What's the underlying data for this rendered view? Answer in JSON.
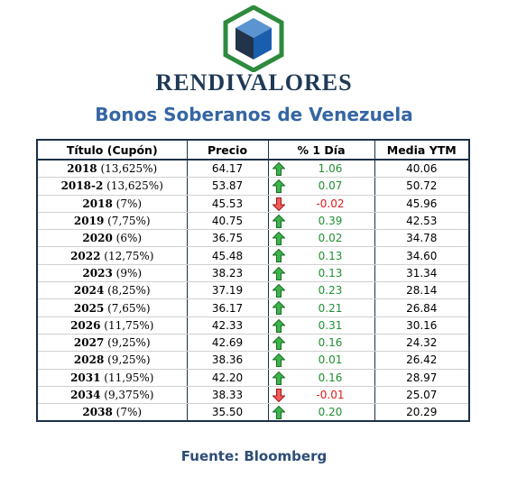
{
  "brand": {
    "name": "RENDIVALORES"
  },
  "subtitle": "Bonos Soberanos de Venezuela",
  "colors": {
    "up": "#1f8f2f",
    "down": "#e01a1a",
    "header_border": "#1b2f46",
    "subtitle": "#3566a3"
  },
  "table": {
    "headers": {
      "title": "Título (Cupón)",
      "price": "Precio",
      "change": "% 1 Día",
      "ytm": "Media YTM"
    },
    "rows": [
      {
        "year": "2018",
        "coupon": "(13,625%)",
        "price": "64.17",
        "change": "1.06",
        "direction": "up",
        "ytm": "40.06"
      },
      {
        "year": "2018-2",
        "coupon": "(13,625%)",
        "price": "53.87",
        "change": "0.07",
        "direction": "up",
        "ytm": "50.72"
      },
      {
        "year": "2018",
        "coupon": "(7%)",
        "price": "45.53",
        "change": "-0.02",
        "direction": "down",
        "ytm": "45.96"
      },
      {
        "year": "2019",
        "coupon": "(7,75%)",
        "price": "40.75",
        "change": "0.39",
        "direction": "up",
        "ytm": "42.53"
      },
      {
        "year": "2020",
        "coupon": "(6%)",
        "price": "36.75",
        "change": "0.02",
        "direction": "up",
        "ytm": "34.78"
      },
      {
        "year": "2022",
        "coupon": "(12,75%)",
        "price": "45.48",
        "change": "0.13",
        "direction": "up",
        "ytm": "34.60"
      },
      {
        "year": "2023",
        "coupon": "(9%)",
        "price": "38.23",
        "change": "0.13",
        "direction": "up",
        "ytm": "31.34"
      },
      {
        "year": "2024",
        "coupon": "(8,25%)",
        "price": "37.19",
        "change": "0.23",
        "direction": "up",
        "ytm": "28.14"
      },
      {
        "year": "2025",
        "coupon": "(7,65%)",
        "price": "36.17",
        "change": "0.21",
        "direction": "up",
        "ytm": "26.84"
      },
      {
        "year": "2026",
        "coupon": "(11,75%)",
        "price": "42.33",
        "change": "0.31",
        "direction": "up",
        "ytm": "30.16"
      },
      {
        "year": "2027",
        "coupon": "(9,25%)",
        "price": "42.69",
        "change": "0.16",
        "direction": "up",
        "ytm": "24.32"
      },
      {
        "year": "2028",
        "coupon": "(9,25%)",
        "price": "38.36",
        "change": "0.01",
        "direction": "up",
        "ytm": "26.42"
      },
      {
        "year": "2031",
        "coupon": "(11,95%)",
        "price": "42.20",
        "change": "0.16",
        "direction": "up",
        "ytm": "28.97"
      },
      {
        "year": "2034",
        "coupon": "(9,375%)",
        "price": "38.33",
        "change": "-0.01",
        "direction": "down",
        "ytm": "25.07"
      },
      {
        "year": "2038",
        "coupon": "(7%)",
        "price": "35.50",
        "change": "0.20",
        "direction": "up",
        "ytm": "20.29"
      }
    ]
  },
  "source": "Fuente: Bloomberg"
}
